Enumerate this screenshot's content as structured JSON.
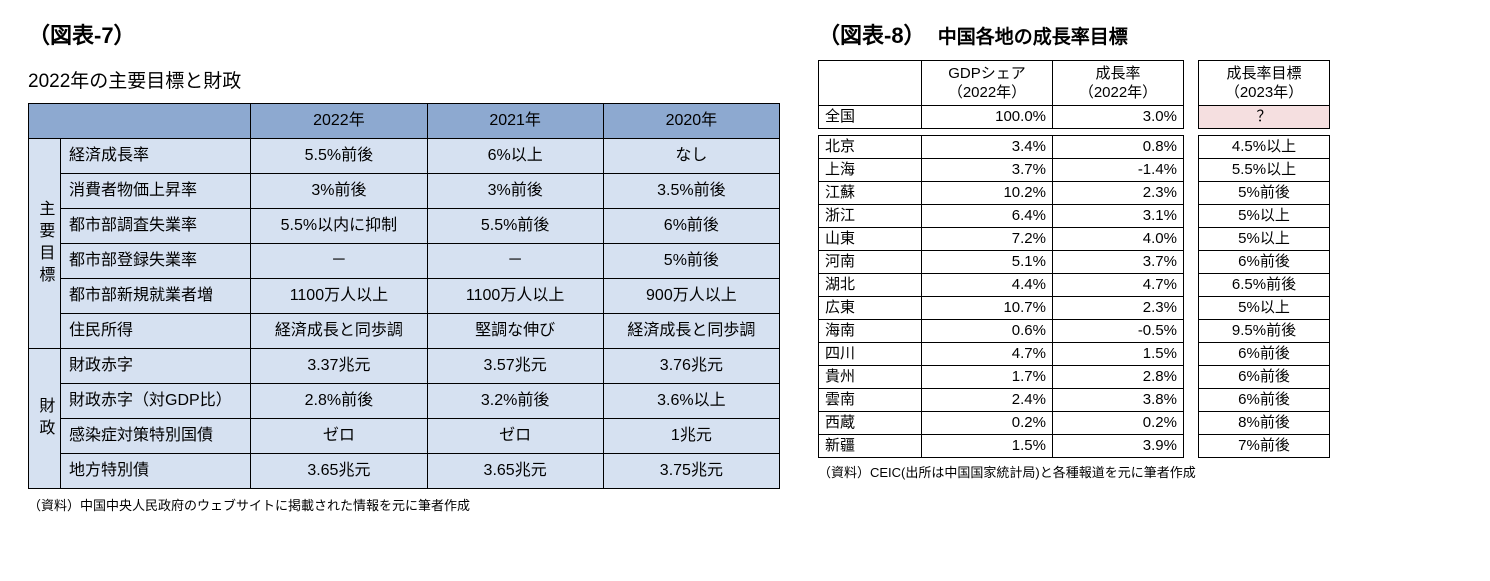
{
  "fig7": {
    "title": "（図表-7）",
    "subtitle": "2022年の主要目標と財政",
    "years": [
      "2022年",
      "2021年",
      "2020年"
    ],
    "cat1_label": "主要目標",
    "cat2_label": "財政",
    "rows_main": [
      {
        "label": "経済成長率",
        "v": [
          "5.5%前後",
          "6%以上",
          "なし"
        ]
      },
      {
        "label": "消費者物価上昇率",
        "v": [
          "3%前後",
          "3%前後",
          "3.5%前後"
        ]
      },
      {
        "label": "都市部調査失業率",
        "v": [
          "5.5%以内に抑制",
          "5.5%前後",
          "6%前後"
        ]
      },
      {
        "label": "都市部登録失業率",
        "v": [
          "－",
          "－",
          "5%前後"
        ]
      },
      {
        "label": "都市部新規就業者増",
        "v": [
          "1100万人以上",
          "1100万人以上",
          "900万人以上"
        ]
      },
      {
        "label": "住民所得",
        "v": [
          "経済成長と同歩調",
          "堅調な伸び",
          "経済成長と同歩調"
        ]
      }
    ],
    "rows_fiscal": [
      {
        "label": "財政赤字",
        "v": [
          "3.37兆元",
          "3.57兆元",
          "3.76兆元"
        ]
      },
      {
        "label": "財政赤字（対GDP比）",
        "v": [
          "2.8%前後",
          "3.2%前後",
          "3.6%以上"
        ]
      },
      {
        "label": "感染症対策特別国債",
        "v": [
          "ゼロ",
          "ゼロ",
          "1兆元"
        ]
      },
      {
        "label": "地方特別債",
        "v": [
          "3.65兆元",
          "3.65兆元",
          "3.75兆元"
        ]
      }
    ],
    "source": "（資料）中国中央人民政府のウェブサイトに掲載された情報を元に筆者作成"
  },
  "fig8": {
    "title": "（図表-8）",
    "subtitle": "中国各地の成長率目標",
    "head_share": "GDPシェア\n（2022年）",
    "head_growth": "成長率\n（2022年）",
    "head_target": "成長率目標\n（2023年）",
    "national": {
      "region": "全国",
      "share": "100.0%",
      "growth": "3.0%",
      "target": "？",
      "target_highlight": true
    },
    "rows": [
      {
        "region": "北京",
        "share": "3.4%",
        "growth": "0.8%",
        "target": "4.5%以上"
      },
      {
        "region": "上海",
        "share": "3.7%",
        "growth": "-1.4%",
        "target": "5.5%以上"
      },
      {
        "region": "江蘇",
        "share": "10.2%",
        "growth": "2.3%",
        "target": "5%前後"
      },
      {
        "region": "浙江",
        "share": "6.4%",
        "growth": "3.1%",
        "target": "5%以上"
      },
      {
        "region": "山東",
        "share": "7.2%",
        "growth": "4.0%",
        "target": "5%以上"
      },
      {
        "region": "河南",
        "share": "5.1%",
        "growth": "3.7%",
        "target": "6%前後"
      },
      {
        "region": "湖北",
        "share": "4.4%",
        "growth": "4.7%",
        "target": "6.5%前後"
      },
      {
        "region": "広東",
        "share": "10.7%",
        "growth": "2.3%",
        "target": "5%以上"
      },
      {
        "region": "海南",
        "share": "0.6%",
        "growth": "-0.5%",
        "target": "9.5%前後"
      },
      {
        "region": "四川",
        "share": "4.7%",
        "growth": "1.5%",
        "target": "6%前後"
      },
      {
        "region": "貴州",
        "share": "1.7%",
        "growth": "2.8%",
        "target": "6%前後"
      },
      {
        "region": "雲南",
        "share": "2.4%",
        "growth": "3.8%",
        "target": "6%前後"
      },
      {
        "region": "西蔵",
        "share": "0.2%",
        "growth": "0.2%",
        "target": "8%前後"
      },
      {
        "region": "新疆",
        "share": "1.5%",
        "growth": "3.9%",
        "target": "7%前後"
      }
    ],
    "source": "（資料）CEIC(出所は中国国家統計局)と各種報道を元に筆者作成"
  }
}
